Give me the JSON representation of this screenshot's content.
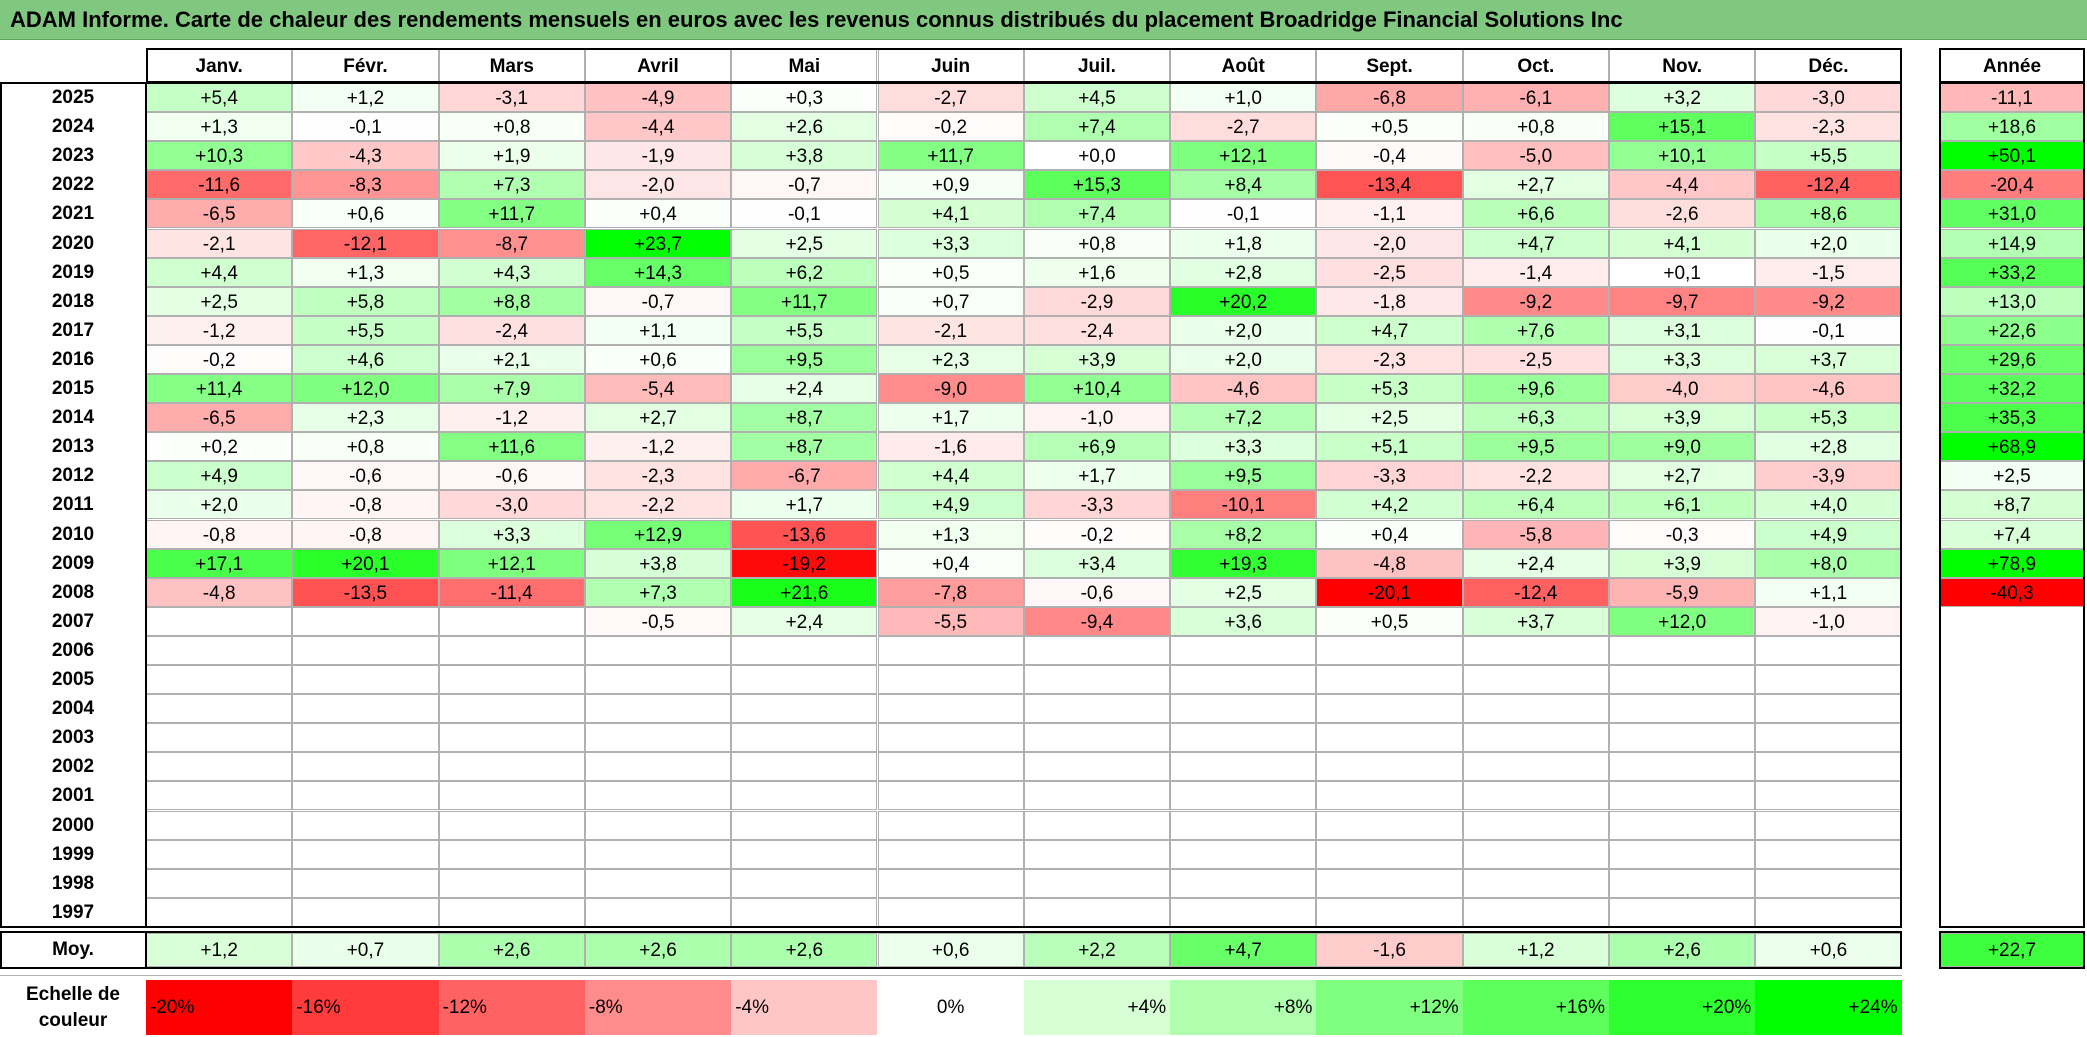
{
  "title": "ADAM Informe. Carte de chaleur des rendements mensuels en euros avec les revenus connus distribués du placement Broadridge Financial Solutions Inc",
  "colors": {
    "title_bg": "#80c87f",
    "neg_max": "#ff0000",
    "pos_max": "#00ff00",
    "neutral": "#ffffff",
    "grid_line": "#b0b0b0",
    "frame": "#000000"
  },
  "chart_data": {
    "type": "heatmap",
    "title": "ADAM Informe. Carte de chaleur des rendements mensuels en euros avec les revenus connus distribués du placement Broadridge Financial Solutions Inc",
    "months": [
      "Janv.",
      "Févr.",
      "Mars",
      "Avril",
      "Mai",
      "Juin",
      "Juil.",
      "Août",
      "Sept.",
      "Oct.",
      "Nov.",
      "Déc."
    ],
    "annual_header": "Année",
    "rows": [
      {
        "year": "2025",
        "values": [
          "+5,4",
          "+1,2",
          "-3,1",
          "-4,9",
          "+0,3",
          "-2,7",
          "+4,5",
          "+1,0",
          "-6,8",
          "-6,1",
          "+3,2",
          "-3,0"
        ],
        "annual": "-11,1"
      },
      {
        "year": "2024",
        "values": [
          "+1,3",
          "-0,1",
          "+0,8",
          "-4,4",
          "+2,6",
          "-0,2",
          "+7,4",
          "-2,7",
          "+0,5",
          "+0,8",
          "+15,1",
          "-2,3"
        ],
        "annual": "+18,6"
      },
      {
        "year": "2023",
        "values": [
          "+10,3",
          "-4,3",
          "+1,9",
          "-1,9",
          "+3,8",
          "+11,7",
          "+0,0",
          "+12,1",
          "-0,4",
          "-5,0",
          "+10,1",
          "+5,5"
        ],
        "annual": "+50,1"
      },
      {
        "year": "2022",
        "values": [
          "-11,6",
          "-8,3",
          "+7,3",
          "-2,0",
          "-0,7",
          "+0,9",
          "+15,3",
          "+8,4",
          "-13,4",
          "+2,7",
          "-4,4",
          "-12,4"
        ],
        "annual": "-20,4"
      },
      {
        "year": "2021",
        "values": [
          "-6,5",
          "+0,6",
          "+11,7",
          "+0,4",
          "-0,1",
          "+4,1",
          "+7,4",
          "-0,1",
          "-1,1",
          "+6,6",
          "-2,6",
          "+8,6"
        ],
        "annual": "+31,0"
      },
      {
        "year": "2020",
        "values": [
          "-2,1",
          "-12,1",
          "-8,7",
          "+23,7",
          "+2,5",
          "+3,3",
          "+0,8",
          "+1,8",
          "-2,0",
          "+4,7",
          "+4,1",
          "+2,0"
        ],
        "annual": "+14,9"
      },
      {
        "year": "2019",
        "values": [
          "+4,4",
          "+1,3",
          "+4,3",
          "+14,3",
          "+6,2",
          "+0,5",
          "+1,6",
          "+2,8",
          "-2,5",
          "-1,4",
          "+0,1",
          "-1,5"
        ],
        "annual": "+33,2"
      },
      {
        "year": "2018",
        "values": [
          "+2,5",
          "+5,8",
          "+8,8",
          "-0,7",
          "+11,7",
          "+0,7",
          "-2,9",
          "+20,2",
          "-1,8",
          "-9,2",
          "-9,7",
          "-9,2"
        ],
        "annual": "+13,0"
      },
      {
        "year": "2017",
        "values": [
          "-1,2",
          "+5,5",
          "-2,4",
          "+1,1",
          "+5,5",
          "-2,1",
          "-2,4",
          "+2,0",
          "+4,7",
          "+7,6",
          "+3,1",
          "-0,1"
        ],
        "annual": "+22,6"
      },
      {
        "year": "2016",
        "values": [
          "-0,2",
          "+4,6",
          "+2,1",
          "+0,6",
          "+9,5",
          "+2,3",
          "+3,9",
          "+2,0",
          "-2,3",
          "-2,5",
          "+3,3",
          "+3,7"
        ],
        "annual": "+29,6"
      },
      {
        "year": "2015",
        "values": [
          "+11,4",
          "+12,0",
          "+7,9",
          "-5,4",
          "+2,4",
          "-9,0",
          "+10,4",
          "-4,6",
          "+5,3",
          "+9,6",
          "-4,0",
          "-4,6"
        ],
        "annual": "+32,2"
      },
      {
        "year": "2014",
        "values": [
          "-6,5",
          "+2,3",
          "-1,2",
          "+2,7",
          "+8,7",
          "+1,7",
          "-1,0",
          "+7,2",
          "+2,5",
          "+6,3",
          "+3,9",
          "+5,3"
        ],
        "annual": "+35,3"
      },
      {
        "year": "2013",
        "values": [
          "+0,2",
          "+0,8",
          "+11,6",
          "-1,2",
          "+8,7",
          "-1,6",
          "+6,9",
          "+3,3",
          "+5,1",
          "+9,5",
          "+9,0",
          "+2,8"
        ],
        "annual": "+68,9"
      },
      {
        "year": "2012",
        "values": [
          "+4,9",
          "-0,6",
          "-0,6",
          "-2,3",
          "-6,7",
          "+4,4",
          "+1,7",
          "+9,5",
          "-3,3",
          "-2,2",
          "+2,7",
          "-3,9"
        ],
        "annual": "+2,5"
      },
      {
        "year": "2011",
        "values": [
          "+2,0",
          "-0,8",
          "-3,0",
          "-2,2",
          "+1,7",
          "+4,9",
          "-3,3",
          "-10,1",
          "+4,2",
          "+6,4",
          "+6,1",
          "+4,0"
        ],
        "annual": "+8,7"
      },
      {
        "year": "2010",
        "values": [
          "-0,8",
          "-0,8",
          "+3,3",
          "+12,9",
          "-13,6",
          "+1,3",
          "-0,2",
          "+8,2",
          "+0,4",
          "-5,8",
          "-0,3",
          "+4,9"
        ],
        "annual": "+7,4"
      },
      {
        "year": "2009",
        "values": [
          "+17,1",
          "+20,1",
          "+12,1",
          "+3,8",
          "-19,2",
          "+0,4",
          "+3,4",
          "+19,3",
          "-4,8",
          "+2,4",
          "+3,9",
          "+8,0"
        ],
        "annual": "+78,9"
      },
      {
        "year": "2008",
        "values": [
          "-4,8",
          "-13,5",
          "-11,4",
          "+7,3",
          "+21,6",
          "-7,8",
          "-0,6",
          "+2,5",
          "-20,1",
          "-12,4",
          "-5,9",
          "+1,1"
        ],
        "annual": "-40,3"
      },
      {
        "year": "2007",
        "values": [
          "",
          "",
          "",
          "-0,5",
          "+2,4",
          "-5,5",
          "-9,4",
          "+3,6",
          "+0,5",
          "+3,7",
          "+12,0",
          "-1,0"
        ],
        "annual": ""
      },
      {
        "year": "2006",
        "values": [
          "",
          "",
          "",
          "",
          "",
          "",
          "",
          "",
          "",
          "",
          "",
          ""
        ],
        "annual": ""
      },
      {
        "year": "2005",
        "values": [
          "",
          "",
          "",
          "",
          "",
          "",
          "",
          "",
          "",
          "",
          "",
          ""
        ],
        "annual": ""
      },
      {
        "year": "2004",
        "values": [
          "",
          "",
          "",
          "",
          "",
          "",
          "",
          "",
          "",
          "",
          "",
          ""
        ],
        "annual": ""
      },
      {
        "year": "2003",
        "values": [
          "",
          "",
          "",
          "",
          "",
          "",
          "",
          "",
          "",
          "",
          "",
          ""
        ],
        "annual": ""
      },
      {
        "year": "2002",
        "values": [
          "",
          "",
          "",
          "",
          "",
          "",
          "",
          "",
          "",
          "",
          "",
          ""
        ],
        "annual": ""
      },
      {
        "year": "2001",
        "values": [
          "",
          "",
          "",
          "",
          "",
          "",
          "",
          "",
          "",
          "",
          "",
          ""
        ],
        "annual": ""
      },
      {
        "year": "2000",
        "values": [
          "",
          "",
          "",
          "",
          "",
          "",
          "",
          "",
          "",
          "",
          "",
          ""
        ],
        "annual": ""
      },
      {
        "year": "1999",
        "values": [
          "",
          "",
          "",
          "",
          "",
          "",
          "",
          "",
          "",
          "",
          "",
          ""
        ],
        "annual": ""
      },
      {
        "year": "1998",
        "values": [
          "",
          "",
          "",
          "",
          "",
          "",
          "",
          "",
          "",
          "",
          "",
          ""
        ],
        "annual": ""
      },
      {
        "year": "1997",
        "values": [
          "",
          "",
          "",
          "",
          "",
          "",
          "",
          "",
          "",
          "",
          "",
          ""
        ],
        "annual": ""
      }
    ],
    "average": {
      "label": "Moy.",
      "values": [
        "+1,2",
        "+0,7",
        "+2,6",
        "+2,6",
        "+2,6",
        "+0,6",
        "+2,2",
        "+4,7",
        "-1,6",
        "+1,2",
        "+2,6",
        "+0,6"
      ],
      "annual": "+22,7"
    },
    "color_scale": {
      "label": "Echelle de couleur",
      "steps": [
        "-20%",
        "-16%",
        "-12%",
        "-8%",
        "-4%",
        "0%",
        "+4%",
        "+8%",
        "+12%",
        "+16%",
        "+20%",
        "+24%"
      ],
      "colors": [
        "#ff0000",
        "#ff3b3b",
        "#ff6262",
        "#ff8c8c",
        "#ffc6c6",
        "#ffffff",
        "#d6ffd6",
        "#afffaf",
        "#80ff80",
        "#5cff5c",
        "#2eff2e",
        "#00ff00"
      ]
    }
  }
}
